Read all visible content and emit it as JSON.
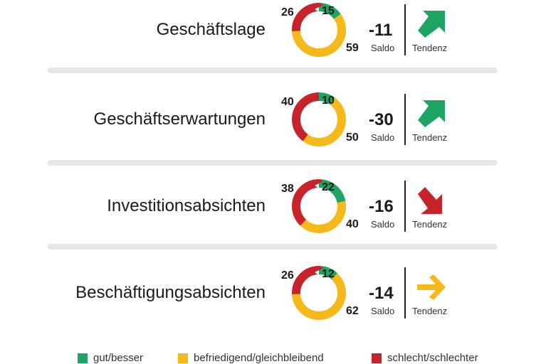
{
  "colors": {
    "good": "#1ea564",
    "neutral": "#f6b91c",
    "bad": "#c6232b",
    "arrow_up": "#1ea564",
    "arrow_down": "#c6232b",
    "arrow_flat": "#f6b91c"
  },
  "labels": {
    "saldo": "Saldo",
    "tendenz": "Tendenz"
  },
  "chart_data": {
    "type": "pie",
    "series_keys": [
      "gut/besser",
      "befriedigend/gleichbleibend",
      "schlecht/schlechter"
    ],
    "rows": [
      {
        "label": "Geschäftslage",
        "good": 15,
        "neutral": 59,
        "bad": 26,
        "saldo": "-11",
        "trend": "up",
        "trend_icon": "arrow-up-right-icon"
      },
      {
        "label": "Geschäftserwartungen",
        "good": 10,
        "neutral": 50,
        "bad": 40,
        "saldo": "-30",
        "trend": "up",
        "trend_icon": "arrow-up-right-icon"
      },
      {
        "label": "Investitionsabsichten",
        "good": 22,
        "neutral": 40,
        "bad": 38,
        "saldo": "-16",
        "trend": "down",
        "trend_icon": "arrow-down-right-icon"
      },
      {
        "label": "Beschäftigungsabsichten",
        "good": 12,
        "neutral": 62,
        "bad": 26,
        "saldo": "-14",
        "trend": "flat",
        "trend_icon": "arrow-right-icon"
      }
    ],
    "legend": [
      {
        "key": "good",
        "label": "gut/besser"
      },
      {
        "key": "neutral",
        "label": "befriedigend/gleichbleibend"
      },
      {
        "key": "bad",
        "label": "schlecht/schlechter"
      }
    ],
    "legend_position": "bottom"
  }
}
